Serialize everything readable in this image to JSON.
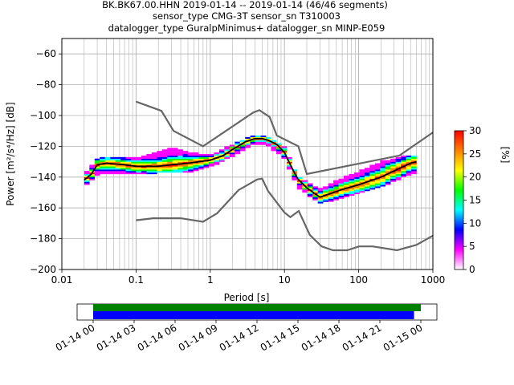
{
  "header": {
    "line1": "BK.BK67.00.HHN   2019-01-14 -- 2019-01-14  (46/46 segments)",
    "line2": "sensor_type CMG-3T sensor_sn T310003",
    "line3": "datalogger_type GuralpMinimus+ datalogger_sn MINP-E059"
  },
  "chart_data": {
    "type": "area",
    "xlabel": "Period [s]",
    "ylabel": "Power [m²/s⁴/Hz] [dB]",
    "xscale": "log",
    "xlim": [
      0.01,
      1000
    ],
    "ylim": [
      -200,
      -50
    ],
    "grid": true,
    "xticks": [
      {
        "value": 0.01,
        "label": "0.01"
      },
      {
        "value": 0.1,
        "label": "0.1"
      },
      {
        "value": 1,
        "label": "1"
      },
      {
        "value": 10,
        "label": "10"
      },
      {
        "value": 100,
        "label": "100"
      },
      {
        "value": 1000,
        "label": "1000"
      }
    ],
    "yticks": [
      -60,
      -80,
      -100,
      -120,
      -140,
      -160,
      -180,
      -200
    ],
    "noise_models": [
      {
        "name": "NHNM",
        "color": "#666666",
        "points": [
          [
            0.1,
            -91
          ],
          [
            0.22,
            -97
          ],
          [
            0.32,
            -110
          ],
          [
            0.8,
            -120
          ],
          [
            3.8,
            -98
          ],
          [
            4.6,
            -96.5
          ],
          [
            6.3,
            -101
          ],
          [
            7.9,
            -113
          ],
          [
            15.4,
            -120
          ],
          [
            20,
            -138
          ],
          [
            354.8,
            -126
          ],
          [
            1000,
            -111
          ]
        ]
      },
      {
        "name": "NLNM",
        "color": "#666666",
        "points": [
          [
            0.1,
            -168
          ],
          [
            0.17,
            -166.7
          ],
          [
            0.4,
            -166.7
          ],
          [
            0.8,
            -169
          ],
          [
            1.24,
            -163.5
          ],
          [
            2.4,
            -148.5
          ],
          [
            4.3,
            -141.5
          ],
          [
            5,
            -141
          ],
          [
            6,
            -149
          ],
          [
            10,
            -163
          ],
          [
            12,
            -166
          ],
          [
            15.6,
            -162
          ],
          [
            21.9,
            -177.5
          ],
          [
            31.6,
            -185
          ],
          [
            45,
            -187.5
          ],
          [
            70,
            -187.5
          ],
          [
            101,
            -185
          ],
          [
            154,
            -185
          ],
          [
            328,
            -187.5
          ],
          [
            600,
            -184
          ],
          [
            1000,
            -178
          ]
        ]
      }
    ],
    "mean_psd": {
      "name": "mean",
      "color": "#000000",
      "points": [
        [
          0.02,
          -142
        ],
        [
          0.025,
          -138
        ],
        [
          0.03,
          -132
        ],
        [
          0.04,
          -131
        ],
        [
          0.07,
          -132
        ],
        [
          0.1,
          -133
        ],
        [
          0.2,
          -133
        ],
        [
          0.3,
          -132
        ],
        [
          0.5,
          -131
        ],
        [
          1,
          -129
        ],
        [
          1.5,
          -126
        ],
        [
          2,
          -122
        ],
        [
          3,
          -117
        ],
        [
          4,
          -115
        ],
        [
          5,
          -115
        ],
        [
          6,
          -116
        ],
        [
          8,
          -119
        ],
        [
          10,
          -124
        ],
        [
          12,
          -132
        ],
        [
          15,
          -141
        ],
        [
          20,
          -147
        ],
        [
          30,
          -153
        ],
        [
          40,
          -151
        ],
        [
          60,
          -148
        ],
        [
          100,
          -145
        ],
        [
          200,
          -140
        ],
        [
          300,
          -136
        ],
        [
          500,
          -131
        ],
        [
          600,
          -130
        ]
      ]
    },
    "psd_spread_db": [
      {
        "period": 0.02,
        "lo": -146,
        "hi": -139
      },
      {
        "period": 0.03,
        "lo": -138,
        "hi": -128
      },
      {
        "period": 0.05,
        "lo": -138,
        "hi": -127
      },
      {
        "period": 0.1,
        "lo": -138,
        "hi": -128
      },
      {
        "period": 0.2,
        "lo": -137,
        "hi": -124
      },
      {
        "period": 0.3,
        "lo": -137,
        "hi": -121
      },
      {
        "period": 0.5,
        "lo": -137,
        "hi": -124
      },
      {
        "period": 1,
        "lo": -133,
        "hi": -126
      },
      {
        "period": 2,
        "lo": -126,
        "hi": -119
      },
      {
        "period": 4,
        "lo": -118,
        "hi": -113
      },
      {
        "period": 6,
        "lo": -119,
        "hi": -114
      },
      {
        "period": 10,
        "lo": -128,
        "hi": -121
      },
      {
        "period": 15,
        "lo": -146,
        "hi": -140
      },
      {
        "period": 30,
        "lo": -157,
        "hi": -148
      },
      {
        "period": 60,
        "lo": -153,
        "hi": -141
      },
      {
        "period": 100,
        "lo": -150,
        "hi": -137
      },
      {
        "period": 200,
        "lo": -146,
        "hi": -130
      },
      {
        "period": 400,
        "lo": -140,
        "hi": -127
      },
      {
        "period": 600,
        "lo": -137,
        "hi": -126
      }
    ],
    "colorbar": {
      "label": "[%]",
      "min": 0,
      "max": 30,
      "ticks": [
        0,
        5,
        10,
        15,
        20,
        25,
        30
      ],
      "colors": [
        "#ffffff",
        "#ff00ff",
        "#0000ff",
        "#00ffff",
        "#00ff00",
        "#ffff00",
        "#ff8000",
        "#ff0000"
      ]
    },
    "coverage": {
      "time_ticks": [
        "01-14 00",
        "01-14 03",
        "01-14 06",
        "01-14 09",
        "01-14 12",
        "01-14 15",
        "01-14 18",
        "01-14 21",
        "01-15 00"
      ],
      "green_bar": {
        "start_hour": 0,
        "end_hour": 24.0,
        "color": "#008000"
      },
      "blue_bar": {
        "start_hour": 0,
        "end_hour": 23.5,
        "color": "#0000ff"
      }
    }
  }
}
